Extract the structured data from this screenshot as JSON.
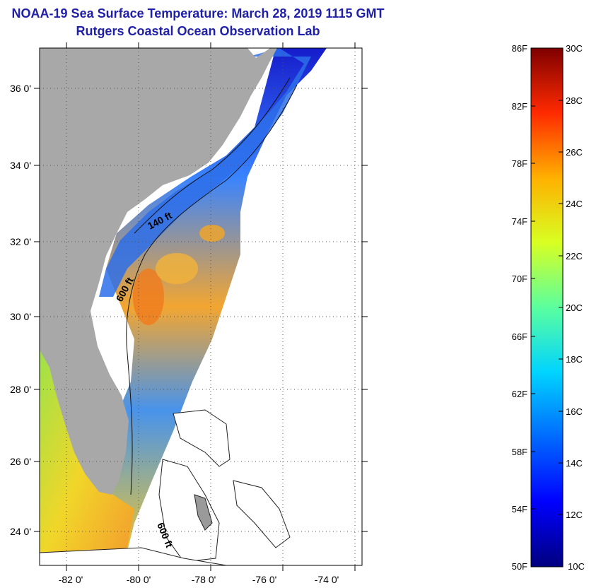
{
  "title_line1": "NOAA-19 Sea Surface Temperature:  March 28, 2019 1115 GMT",
  "title_line2": "Rutgers Coastal Ocean Observation Lab",
  "map": {
    "lon_range": [
      -83,
      -73
    ],
    "lat_range": [
      23,
      37
    ],
    "lon_ticks": [
      -82,
      -80,
      -78,
      -76,
      -74
    ],
    "lat_ticks": [
      24,
      26,
      28,
      30,
      32,
      34,
      36
    ],
    "lon_labels": [
      "-82 0'",
      "-80 0'",
      "-78 0'",
      "-76 0'",
      "-74 0'"
    ],
    "lat_labels": [
      "24 0'",
      "26 0'",
      "28 0'",
      "30 0'",
      "32 0'",
      "34 0'",
      "36 0'"
    ],
    "grid": "dotted",
    "land_color": "#a8a8a8",
    "contour_labels": [
      "140 ft",
      "600 ft",
      "600 ft"
    ]
  },
  "colorbar": {
    "fahrenheit_labels": [
      "86F",
      "82F",
      "78F",
      "74F",
      "70F",
      "66F",
      "62F",
      "58F",
      "54F",
      "50F"
    ],
    "celsius_labels": [
      "30C",
      "28C",
      "26C",
      "24C",
      "22C",
      "20C",
      "18C",
      "16C",
      "14C",
      "12C",
      "10C"
    ],
    "range_c": [
      10,
      30
    ],
    "colormap": [
      "#00007f",
      "#0000ff",
      "#007fff",
      "#00ffff",
      "#7fff7f",
      "#ffff00",
      "#ff7f00",
      "#ff0000",
      "#7f0000"
    ]
  }
}
